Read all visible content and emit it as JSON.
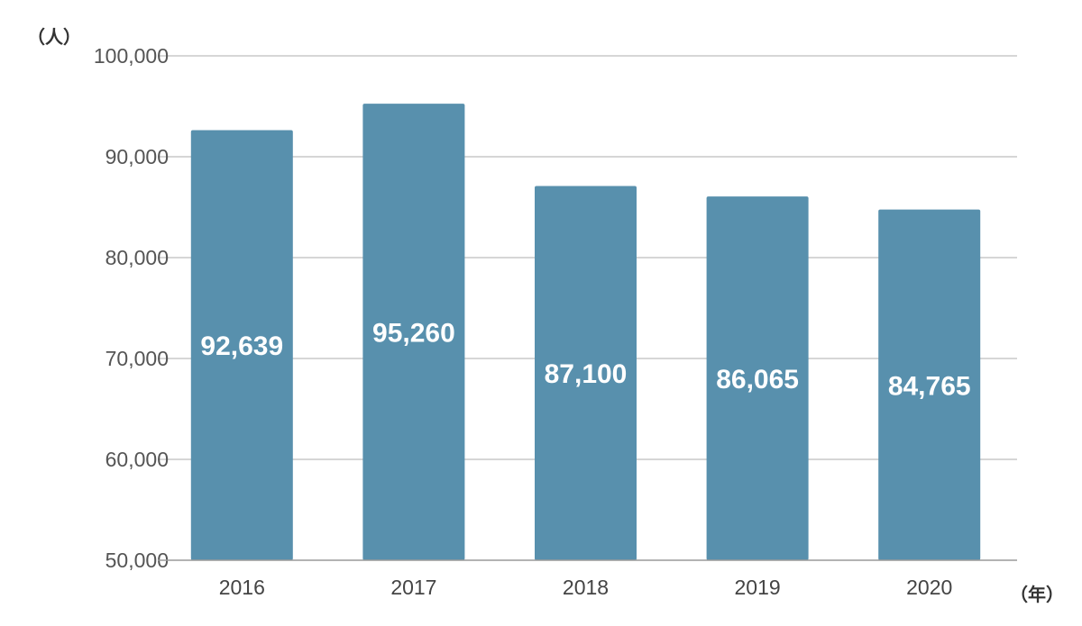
{
  "chart_data": {
    "type": "bar",
    "ylabel": "（人）",
    "xlabel": "（年）",
    "ylim": [
      50000,
      100000
    ],
    "yticks": [
      "50,000",
      "60,000",
      "70,000",
      "80,000",
      "90,000",
      "100,000"
    ],
    "ytick_values": [
      50000,
      60000,
      70000,
      80000,
      90000,
      100000
    ],
    "categories": [
      "2016",
      "2017",
      "2018",
      "2019",
      "2020"
    ],
    "values": [
      92639,
      95260,
      87100,
      86065,
      84765
    ],
    "data_labels": [
      "92,639",
      "95,260",
      "87,100",
      "86,065",
      "84,765"
    ],
    "grid": true,
    "legend": "none",
    "colors": {
      "bar": "#5890ad"
    }
  }
}
